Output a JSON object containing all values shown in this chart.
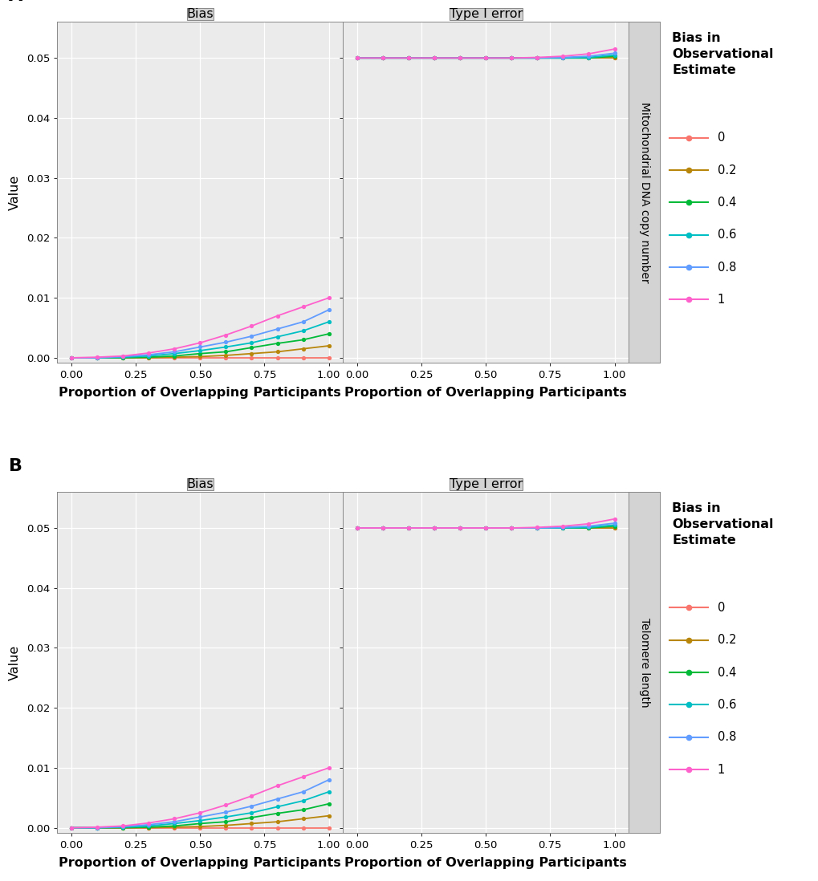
{
  "x_values": [
    0.0,
    0.1,
    0.2,
    0.3,
    0.4,
    0.5,
    0.6,
    0.7,
    0.8,
    0.9,
    1.0
  ],
  "series_labels": [
    "0",
    "0.2",
    "0.4",
    "0.6",
    "0.8",
    "1"
  ],
  "colors": [
    "#F8766D",
    "#B8860B",
    "#00BA38",
    "#00BFC4",
    "#619CFF",
    "#FF61CC"
  ],
  "bias_A": [
    [
      0.0,
      0.0,
      0.0,
      0.0,
      0.0,
      0.0,
      0.0,
      0.0,
      0.0,
      0.0,
      0.0
    ],
    [
      0.0,
      0.0,
      0.0,
      0.0,
      0.0001,
      0.0002,
      0.0004,
      0.0007,
      0.001,
      0.0015,
      0.002
    ],
    [
      0.0,
      0.0,
      0.0,
      0.0001,
      0.0003,
      0.0007,
      0.001,
      0.0017,
      0.0024,
      0.003,
      0.004
    ],
    [
      0.0,
      0.0,
      0.0001,
      0.0003,
      0.0007,
      0.0012,
      0.0018,
      0.0025,
      0.0035,
      0.0045,
      0.006
    ],
    [
      0.0,
      0.0,
      0.0002,
      0.0005,
      0.001,
      0.0018,
      0.0026,
      0.0036,
      0.0048,
      0.006,
      0.008
    ],
    [
      0.0,
      0.0001,
      0.0003,
      0.0008,
      0.0015,
      0.0025,
      0.0038,
      0.0053,
      0.007,
      0.0085,
      0.01
    ]
  ],
  "type1_A": [
    [
      0.05,
      0.05,
      0.05,
      0.05,
      0.05,
      0.05,
      0.05,
      0.05,
      0.05,
      0.05,
      0.05
    ],
    [
      0.05,
      0.05,
      0.05,
      0.05,
      0.05,
      0.05,
      0.05,
      0.05,
      0.05,
      0.05,
      0.05
    ],
    [
      0.05,
      0.05,
      0.05,
      0.05,
      0.05,
      0.05,
      0.05,
      0.05,
      0.05,
      0.05,
      0.0503
    ],
    [
      0.05,
      0.05,
      0.05,
      0.05,
      0.05,
      0.05,
      0.05,
      0.05,
      0.05,
      0.0501,
      0.0505
    ],
    [
      0.05,
      0.05,
      0.05,
      0.05,
      0.05,
      0.05,
      0.05,
      0.05,
      0.0501,
      0.0503,
      0.0508
    ],
    [
      0.05,
      0.05,
      0.05,
      0.05,
      0.05,
      0.05,
      0.05,
      0.0501,
      0.0503,
      0.0507,
      0.0515
    ]
  ],
  "bias_B": [
    [
      0.0,
      0.0,
      0.0,
      0.0,
      0.0,
      0.0,
      0.0,
      0.0,
      0.0,
      0.0,
      0.0
    ],
    [
      0.0,
      0.0,
      0.0,
      0.0,
      0.0001,
      0.0002,
      0.0004,
      0.0007,
      0.001,
      0.0015,
      0.002
    ],
    [
      0.0,
      0.0,
      0.0,
      0.0001,
      0.0003,
      0.0007,
      0.001,
      0.0017,
      0.0024,
      0.003,
      0.004
    ],
    [
      0.0,
      0.0,
      0.0001,
      0.0003,
      0.0007,
      0.0012,
      0.0018,
      0.0025,
      0.0035,
      0.0045,
      0.006
    ],
    [
      0.0,
      0.0,
      0.0002,
      0.0005,
      0.001,
      0.0018,
      0.0026,
      0.0036,
      0.0048,
      0.006,
      0.008
    ],
    [
      0.0,
      0.0001,
      0.0003,
      0.0008,
      0.0015,
      0.0025,
      0.0038,
      0.0053,
      0.007,
      0.0085,
      0.01
    ]
  ],
  "type1_B": [
    [
      0.05,
      0.05,
      0.05,
      0.05,
      0.05,
      0.05,
      0.05,
      0.05,
      0.05,
      0.05,
      0.05
    ],
    [
      0.05,
      0.05,
      0.05,
      0.05,
      0.05,
      0.05,
      0.05,
      0.05,
      0.05,
      0.05,
      0.05
    ],
    [
      0.05,
      0.05,
      0.05,
      0.05,
      0.05,
      0.05,
      0.05,
      0.05,
      0.05,
      0.05,
      0.0503
    ],
    [
      0.05,
      0.05,
      0.05,
      0.05,
      0.05,
      0.05,
      0.05,
      0.05,
      0.05,
      0.0501,
      0.0505
    ],
    [
      0.05,
      0.05,
      0.05,
      0.05,
      0.05,
      0.05,
      0.05,
      0.05,
      0.0501,
      0.0503,
      0.0508
    ],
    [
      0.05,
      0.05,
      0.05,
      0.05,
      0.05,
      0.05,
      0.05,
      0.0501,
      0.0503,
      0.0507,
      0.0515
    ]
  ],
  "xlabel": "Proportion of Overlapping Participants",
  "ylabel": "Value",
  "legend_title": "Bias in\nObservational\nEstimate",
  "strip_A": "Mitochondrial DNA copy number",
  "strip_B": "Telomere length",
  "panel_A_label": "A",
  "panel_B_label": "B",
  "ylim": [
    -0.0008,
    0.056
  ],
  "yticks": [
    0.0,
    0.01,
    0.02,
    0.03,
    0.04,
    0.05
  ],
  "xticks": [
    0.0,
    0.25,
    0.5,
    0.75,
    1.0
  ],
  "bg_color": "#EBEBEB",
  "strip_bg": "#D3D3D3",
  "grid_color": "#FFFFFF"
}
